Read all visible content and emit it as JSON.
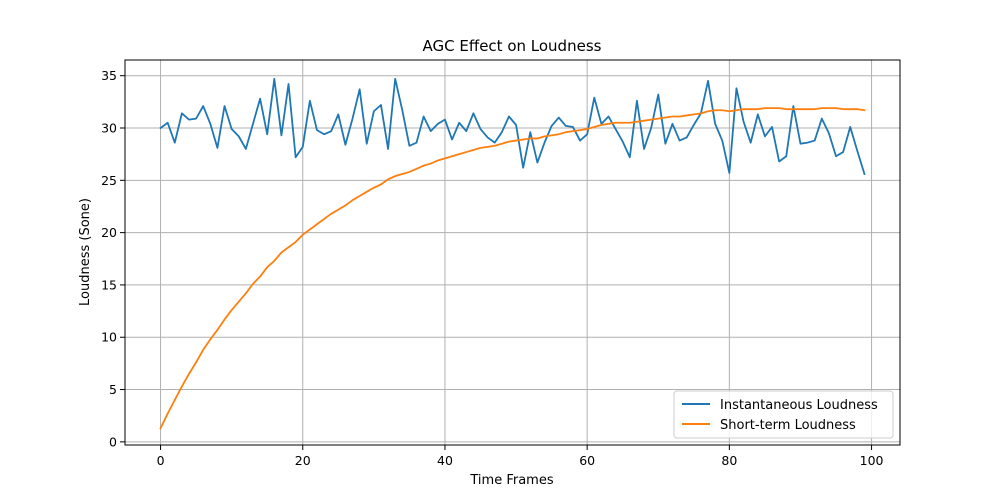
{
  "chart_data": {
    "type": "line",
    "title": "AGC Effect on Loudness",
    "xlabel": "Time Frames",
    "ylabel": "Loudness (Sone)",
    "xlim": [
      -5,
      104
    ],
    "ylim": [
      -0.3,
      36.5
    ],
    "xticks": [
      0,
      20,
      40,
      60,
      80,
      100
    ],
    "yticks": [
      0,
      5,
      10,
      15,
      20,
      25,
      30,
      35
    ],
    "grid": true,
    "legend_position": "lower-right",
    "series": [
      {
        "name": "Instantaneous Loudness",
        "color": "#1f77b4",
        "x": [
          0,
          1,
          2,
          3,
          4,
          5,
          6,
          7,
          8,
          9,
          10,
          11,
          12,
          13,
          14,
          15,
          16,
          17,
          18,
          19,
          20,
          21,
          22,
          23,
          24,
          25,
          26,
          27,
          28,
          29,
          30,
          31,
          32,
          33,
          34,
          35,
          36,
          37,
          38,
          39,
          40,
          41,
          42,
          43,
          44,
          45,
          46,
          47,
          48,
          49,
          50,
          51,
          52,
          53,
          54,
          55,
          56,
          57,
          58,
          59,
          60,
          61,
          62,
          63,
          64,
          65,
          66,
          67,
          68,
          69,
          70,
          71,
          72,
          73,
          74,
          75,
          76,
          77,
          78,
          79,
          80,
          81,
          82,
          83,
          84,
          85,
          86,
          87,
          88,
          89,
          90,
          91,
          92,
          93,
          94,
          95,
          96,
          97,
          98,
          99
        ],
        "y": [
          30.0,
          30.5,
          28.6,
          31.4,
          30.8,
          30.9,
          32.1,
          30.4,
          28.1,
          32.1,
          29.9,
          29.2,
          28.0,
          30.4,
          32.8,
          29.4,
          34.7,
          29.3,
          34.2,
          27.2,
          28.2,
          32.6,
          29.8,
          29.4,
          29.7,
          31.3,
          28.4,
          30.9,
          33.7,
          28.5,
          31.6,
          32.2,
          28.0,
          34.7,
          31.7,
          28.3,
          28.6,
          31.1,
          29.7,
          30.4,
          30.8,
          28.9,
          30.5,
          29.7,
          31.4,
          29.9,
          29.1,
          28.6,
          29.6,
          31.1,
          30.3,
          26.2,
          29.6,
          26.7,
          28.6,
          30.2,
          31.0,
          30.2,
          30.1,
          28.8,
          29.4,
          32.9,
          30.4,
          31.1,
          29.9,
          28.7,
          27.2,
          32.6,
          28.0,
          30.0,
          33.2,
          28.5,
          30.4,
          28.8,
          29.1,
          30.3,
          31.4,
          34.5,
          30.4,
          28.8,
          25.7,
          33.8,
          30.6,
          28.6,
          31.3,
          29.2,
          30.1,
          26.8,
          27.3,
          32.1,
          28.5,
          28.6,
          28.8,
          30.9,
          29.5,
          27.3,
          27.7,
          30.1,
          27.8,
          25.6
        ]
      },
      {
        "name": "Short-term Loudness",
        "color": "#ff7f0e",
        "x": [
          0,
          1,
          2,
          3,
          4,
          5,
          6,
          7,
          8,
          9,
          10,
          11,
          12,
          13,
          14,
          15,
          16,
          17,
          18,
          19,
          20,
          21,
          22,
          23,
          24,
          25,
          26,
          27,
          28,
          29,
          30,
          31,
          32,
          33,
          34,
          35,
          36,
          37,
          38,
          39,
          40,
          41,
          42,
          43,
          44,
          45,
          46,
          47,
          48,
          49,
          50,
          51,
          52,
          53,
          54,
          55,
          56,
          57,
          58,
          59,
          60,
          61,
          62,
          63,
          64,
          65,
          66,
          67,
          68,
          69,
          70,
          71,
          72,
          73,
          74,
          75,
          76,
          77,
          78,
          79,
          80,
          81,
          82,
          83,
          84,
          85,
          86,
          87,
          88,
          89,
          90,
          91,
          92,
          93,
          94,
          95,
          96,
          97,
          98,
          99
        ],
        "y": [
          1.3,
          2.7,
          4.0,
          5.3,
          6.5,
          7.6,
          8.8,
          9.8,
          10.7,
          11.7,
          12.6,
          13.4,
          14.2,
          15.1,
          15.8,
          16.7,
          17.3,
          18.1,
          18.6,
          19.1,
          19.8,
          20.3,
          20.8,
          21.3,
          21.8,
          22.2,
          22.6,
          23.1,
          23.5,
          23.9,
          24.3,
          24.6,
          25.1,
          25.4,
          25.6,
          25.8,
          26.1,
          26.4,
          26.6,
          26.9,
          27.1,
          27.3,
          27.5,
          27.7,
          27.9,
          28.1,
          28.2,
          28.3,
          28.5,
          28.7,
          28.8,
          28.9,
          29.0,
          29.0,
          29.2,
          29.3,
          29.4,
          29.6,
          29.7,
          29.8,
          29.9,
          30.1,
          30.3,
          30.4,
          30.5,
          30.5,
          30.5,
          30.6,
          30.7,
          30.8,
          30.9,
          31.0,
          31.1,
          31.1,
          31.2,
          31.3,
          31.4,
          31.6,
          31.7,
          31.7,
          31.6,
          31.7,
          31.8,
          31.8,
          31.8,
          31.9,
          31.9,
          31.9,
          31.8,
          31.8,
          31.8,
          31.8,
          31.8,
          31.9,
          31.9,
          31.9,
          31.8,
          31.8,
          31.8,
          31.7
        ]
      }
    ]
  }
}
